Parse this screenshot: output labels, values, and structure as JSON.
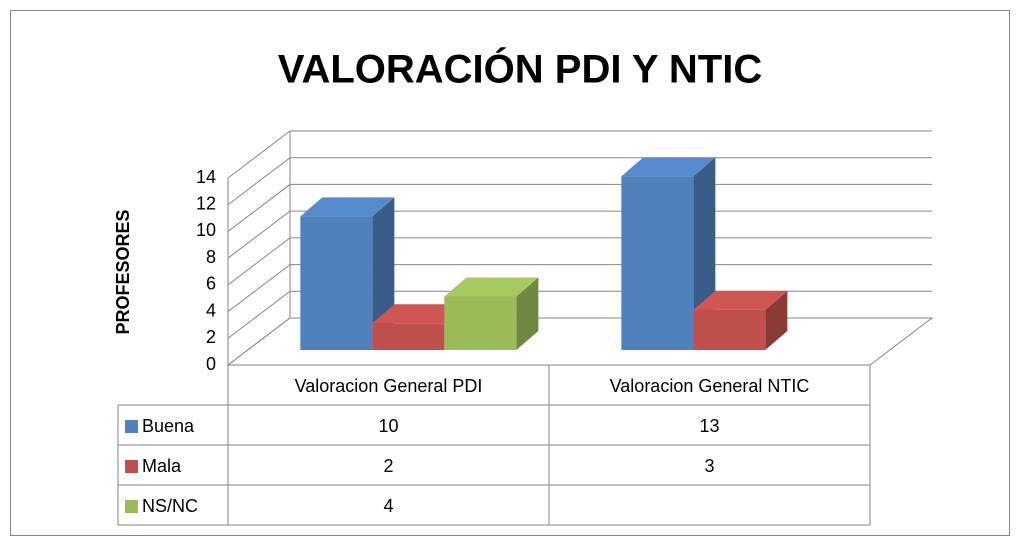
{
  "chart_data": {
    "type": "bar3d",
    "title": "VALORACIÓN PDI Y NTIC",
    "y_label": "PROFESORES",
    "categories": [
      "Valoracion General PDI",
      "Valoracion General NTIC"
    ],
    "series": [
      {
        "name": "Buena",
        "color": "#4f81bd",
        "values": [
          10,
          13
        ]
      },
      {
        "name": "Mala",
        "color": "#c0504d",
        "values": [
          2,
          3
        ]
      },
      {
        "name": "NS/NC",
        "color": "#9bbb59",
        "values": [
          4,
          null
        ]
      }
    ],
    "ylim": [
      0,
      14
    ],
    "yticks": [
      0,
      2,
      4,
      6,
      8,
      10,
      12,
      14
    ],
    "grid": true
  }
}
